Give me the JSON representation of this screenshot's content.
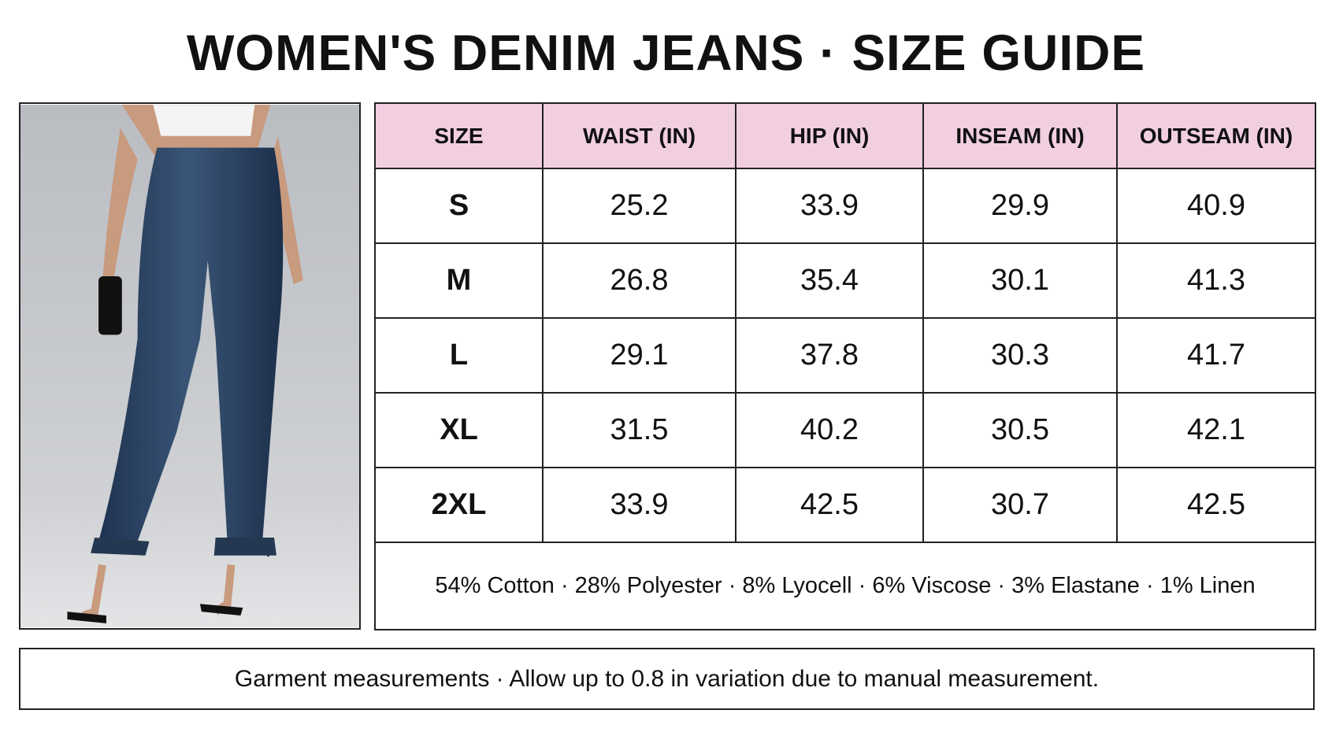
{
  "title": "WOMEN'S DENIM JEANS · SIZE GUIDE",
  "table": {
    "header": [
      "SIZE",
      "WAIST (IN)",
      "HIP (IN)",
      "INSEAM (IN)",
      "OUTSEAM (IN)"
    ],
    "rows": [
      [
        "S",
        "25.2",
        "33.9",
        "29.9",
        "40.9"
      ],
      [
        "M",
        "26.8",
        "35.4",
        "30.1",
        "41.3"
      ],
      [
        "L",
        "29.1",
        "37.8",
        "30.3",
        "41.7"
      ],
      [
        "XL",
        "31.5",
        "40.2",
        "30.5",
        "42.1"
      ],
      [
        "2XL",
        "33.9",
        "42.5",
        "30.7",
        "42.5"
      ]
    ],
    "composition": "54% Cotton · 28% Polyester · 8% Lyocell · 6% Viscose · 3% Elastane · 1% Linen"
  },
  "footer": "Garment measurements · Allow up to 0.8 in variation due to manual measurement."
}
